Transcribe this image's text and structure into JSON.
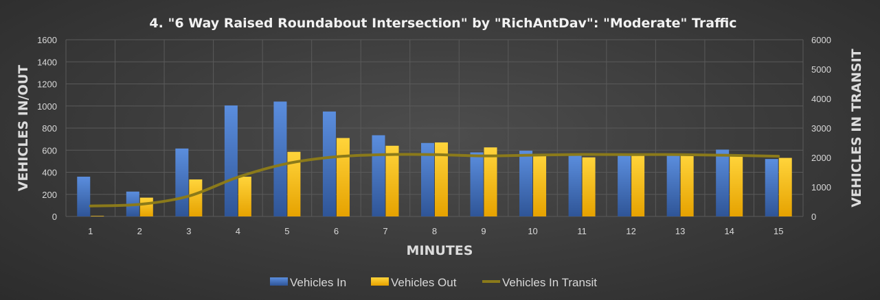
{
  "chart_data": {
    "type": "bar",
    "title": "4. \"6 Way Raised Roundabout Intersection\" by \"RichAntDav\": \"Moderate\" Traffic",
    "xlabel": "MINUTES",
    "ylabel": "VEHICLES IN/OUT",
    "y2label": "VEHICLES IN TRANSIT",
    "categories": [
      "1",
      "2",
      "3",
      "4",
      "5",
      "6",
      "7",
      "8",
      "9",
      "10",
      "11",
      "12",
      "13",
      "14",
      "15"
    ],
    "ylim": [
      0,
      1600
    ],
    "y2lim": [
      0,
      6000
    ],
    "yticks": [
      "0",
      "200",
      "400",
      "600",
      "800",
      "1000",
      "1200",
      "1400",
      "1600"
    ],
    "y2ticks": [
      "0",
      "1000",
      "2000",
      "3000",
      "4000",
      "5000",
      "6000"
    ],
    "grid": true,
    "legend_position": "bottom",
    "series": [
      {
        "name": "Vehicles In",
        "type": "bar",
        "axis": "left",
        "color": "#4472c4",
        "values": [
          360,
          225,
          615,
          1005,
          1040,
          950,
          735,
          665,
          580,
          595,
          560,
          555,
          555,
          605,
          520
        ]
      },
      {
        "name": "Vehicles Out",
        "type": "bar",
        "axis": "left",
        "color": "#ffc000",
        "values": [
          5,
          170,
          335,
          360,
          585,
          710,
          640,
          670,
          625,
          565,
          535,
          560,
          560,
          555,
          530
        ]
      },
      {
        "name": "Vehicles In Transit",
        "type": "line",
        "axis": "right",
        "color": "#8b7a1a",
        "values": [
          355,
          410,
          690,
          1335,
          1795,
          2025,
          2100,
          2100,
          2055,
          2080,
          2105,
          2100,
          2100,
          2075,
          2045
        ]
      }
    ]
  }
}
